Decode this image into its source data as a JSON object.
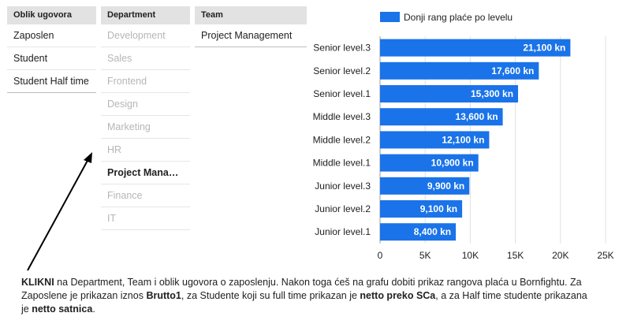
{
  "filters": {
    "oblik": {
      "header": "Oblik ugovora",
      "items": [
        "Zaposlen",
        "Student",
        "Student Half time"
      ]
    },
    "department": {
      "header": "Department",
      "items": [
        "Development",
        "Sales",
        "Frontend",
        "Design",
        "Marketing",
        "HR",
        "Project Manage...",
        "Finance",
        "IT"
      ],
      "selected_index": 6
    },
    "team": {
      "header": "Team",
      "items": [
        "Project Management"
      ]
    }
  },
  "chart_data": {
    "type": "bar",
    "orientation": "horizontal",
    "legend": "Donji rang plaće po levelu",
    "legend_placement": "top",
    "series_color": "#1a73e8",
    "categories": [
      "Senior level.3",
      "Senior level.2",
      "Senior level.1",
      "Middle level.3",
      "Middle level.2",
      "Middle level.1",
      "Junior level.3",
      "Junior level.2",
      "Junior level.1"
    ],
    "values": [
      21100,
      17600,
      15300,
      13600,
      12100,
      10900,
      9900,
      9100,
      8400
    ],
    "value_labels": [
      "21,100 kn",
      "17,600 kn",
      "15,300 kn",
      "13,600 kn",
      "12,100 kn",
      "10,900 kn",
      "9,900 kn",
      "9,100 kn",
      "8,400 kn"
    ],
    "xlim": [
      0,
      25000
    ],
    "x_ticks": [
      0,
      5000,
      10000,
      15000,
      20000,
      25000
    ],
    "x_tick_labels": [
      "0",
      "5K",
      "10K",
      "15K",
      "20K",
      "25K"
    ],
    "grid": true
  },
  "description": {
    "p1_bold": "KLIKNI",
    "p1": " na Department, Team i oblik ugovora o zaposlenju. Nakon toga ćeš na grafu dobiti prikaz rangova plaća u Bornfightu. Za Zaposlene je prikazan iznos ",
    "p2_bold": "Brutto1",
    "p2": ", za Studente koji su full time prikazan je ",
    "p3_bold": "netto preko SCa",
    "p3": ", a za Half time studente prikazana je ",
    "p4_bold": "netto satnica",
    "p4": "."
  }
}
